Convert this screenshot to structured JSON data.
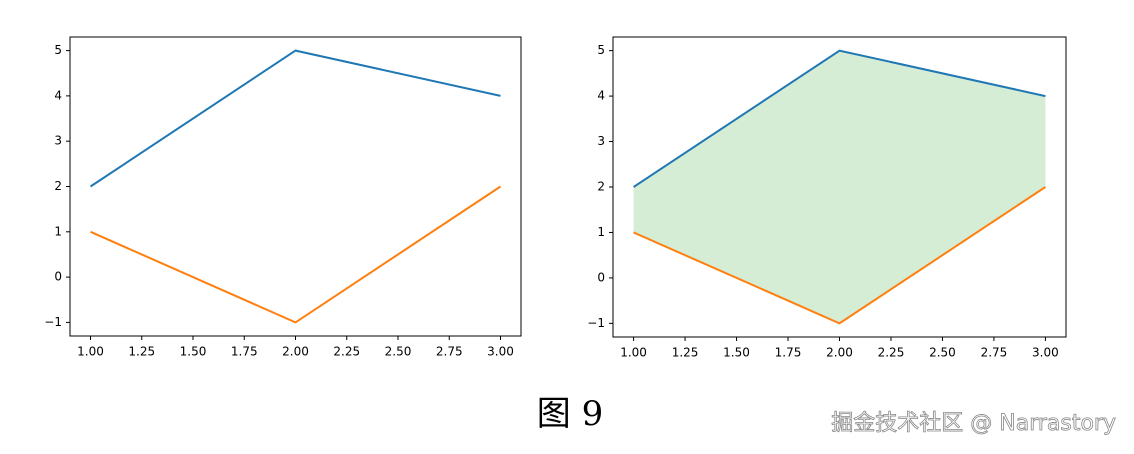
{
  "chart_data": [
    {
      "type": "line",
      "x": [
        1,
        2,
        3
      ],
      "series": [
        {
          "color": "#1f77b4",
          "values": [
            2,
            5,
            4
          ]
        },
        {
          "color": "#ff7f0e",
          "values": [
            1,
            -1,
            2
          ]
        }
      ],
      "xlim": [
        0.9,
        3.1
      ],
      "ylim": [
        -1.3,
        5.3
      ],
      "xticks": [
        {
          "value": 1,
          "label": "1.00"
        },
        {
          "value": 1.25,
          "label": "1.25"
        },
        {
          "value": 1.5,
          "label": "1.50"
        },
        {
          "value": 1.75,
          "label": "1.75"
        },
        {
          "value": 2,
          "label": "2.00"
        },
        {
          "value": 2.25,
          "label": "2.25"
        },
        {
          "value": 2.5,
          "label": "2.50"
        },
        {
          "value": 2.75,
          "label": "2.75"
        },
        {
          "value": 3,
          "label": "3.00"
        }
      ],
      "yticks": [
        {
          "value": -1,
          "label": "−1"
        },
        0,
        1,
        2,
        3,
        4,
        5
      ]
    },
    {
      "type": "line",
      "x": [
        1,
        2,
        3
      ],
      "series": [
        {
          "color": "#1f77b4",
          "values": [
            2,
            5,
            4
          ]
        },
        {
          "color": "#ff7f0e",
          "values": [
            1,
            -1,
            2
          ]
        }
      ],
      "fill_between": {
        "color": "#2ca02c",
        "alpha": 0.2
      },
      "xlim": [
        0.9,
        3.1
      ],
      "ylim": [
        -1.3,
        5.3
      ],
      "xticks": [
        {
          "value": 1,
          "label": "1.00"
        },
        {
          "value": 1.25,
          "label": "1.25"
        },
        {
          "value": 1.5,
          "label": "1.50"
        },
        {
          "value": 1.75,
          "label": "1.75"
        },
        {
          "value": 2,
          "label": "2.00"
        },
        {
          "value": 2.25,
          "label": "2.25"
        },
        {
          "value": 2.5,
          "label": "2.50"
        },
        {
          "value": 2.75,
          "label": "2.75"
        },
        {
          "value": 3,
          "label": "3.00"
        }
      ],
      "yticks": [
        {
          "value": -1,
          "label": "−1"
        },
        0,
        1,
        2,
        3,
        4,
        5
      ]
    }
  ],
  "caption": "图 9",
  "watermark": "掘金技术社区 @ Narrastory"
}
